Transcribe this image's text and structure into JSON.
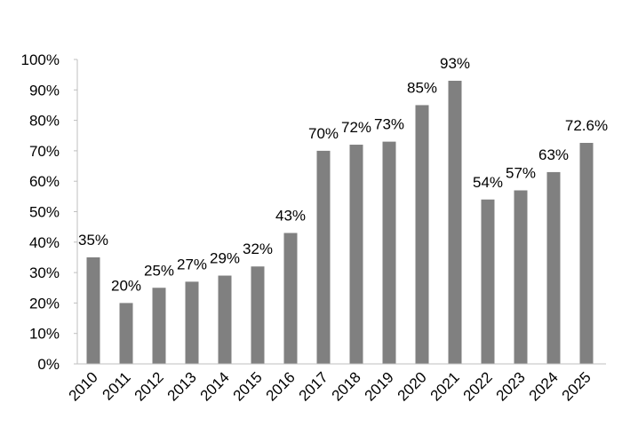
{
  "chart_data": {
    "type": "bar",
    "categories": [
      "2010",
      "2011",
      "2012",
      "2013",
      "2014",
      "2015",
      "2016",
      "2017",
      "2018",
      "2019",
      "2020",
      "2021",
      "2022",
      "2023",
      "2024",
      "2025"
    ],
    "values": [
      35,
      20,
      25,
      27,
      29,
      32,
      43,
      70,
      72,
      73,
      85,
      93,
      54,
      57,
      63,
      72.6
    ],
    "data_labels": [
      "35%",
      "20%",
      "25%",
      "27%",
      "29%",
      "32%",
      "43%",
      "70%",
      "72%",
      "73%",
      "85%",
      "93%",
      "54%",
      "57%",
      "63%",
      "72.6%"
    ],
    "y_ticks": [
      "0%",
      "10%",
      "20%",
      "30%",
      "40%",
      "50%",
      "60%",
      "70%",
      "80%",
      "90%",
      "100%"
    ],
    "ylim": [
      0,
      100
    ],
    "bar_color": "#808080",
    "grid": false,
    "legend": "none"
  }
}
